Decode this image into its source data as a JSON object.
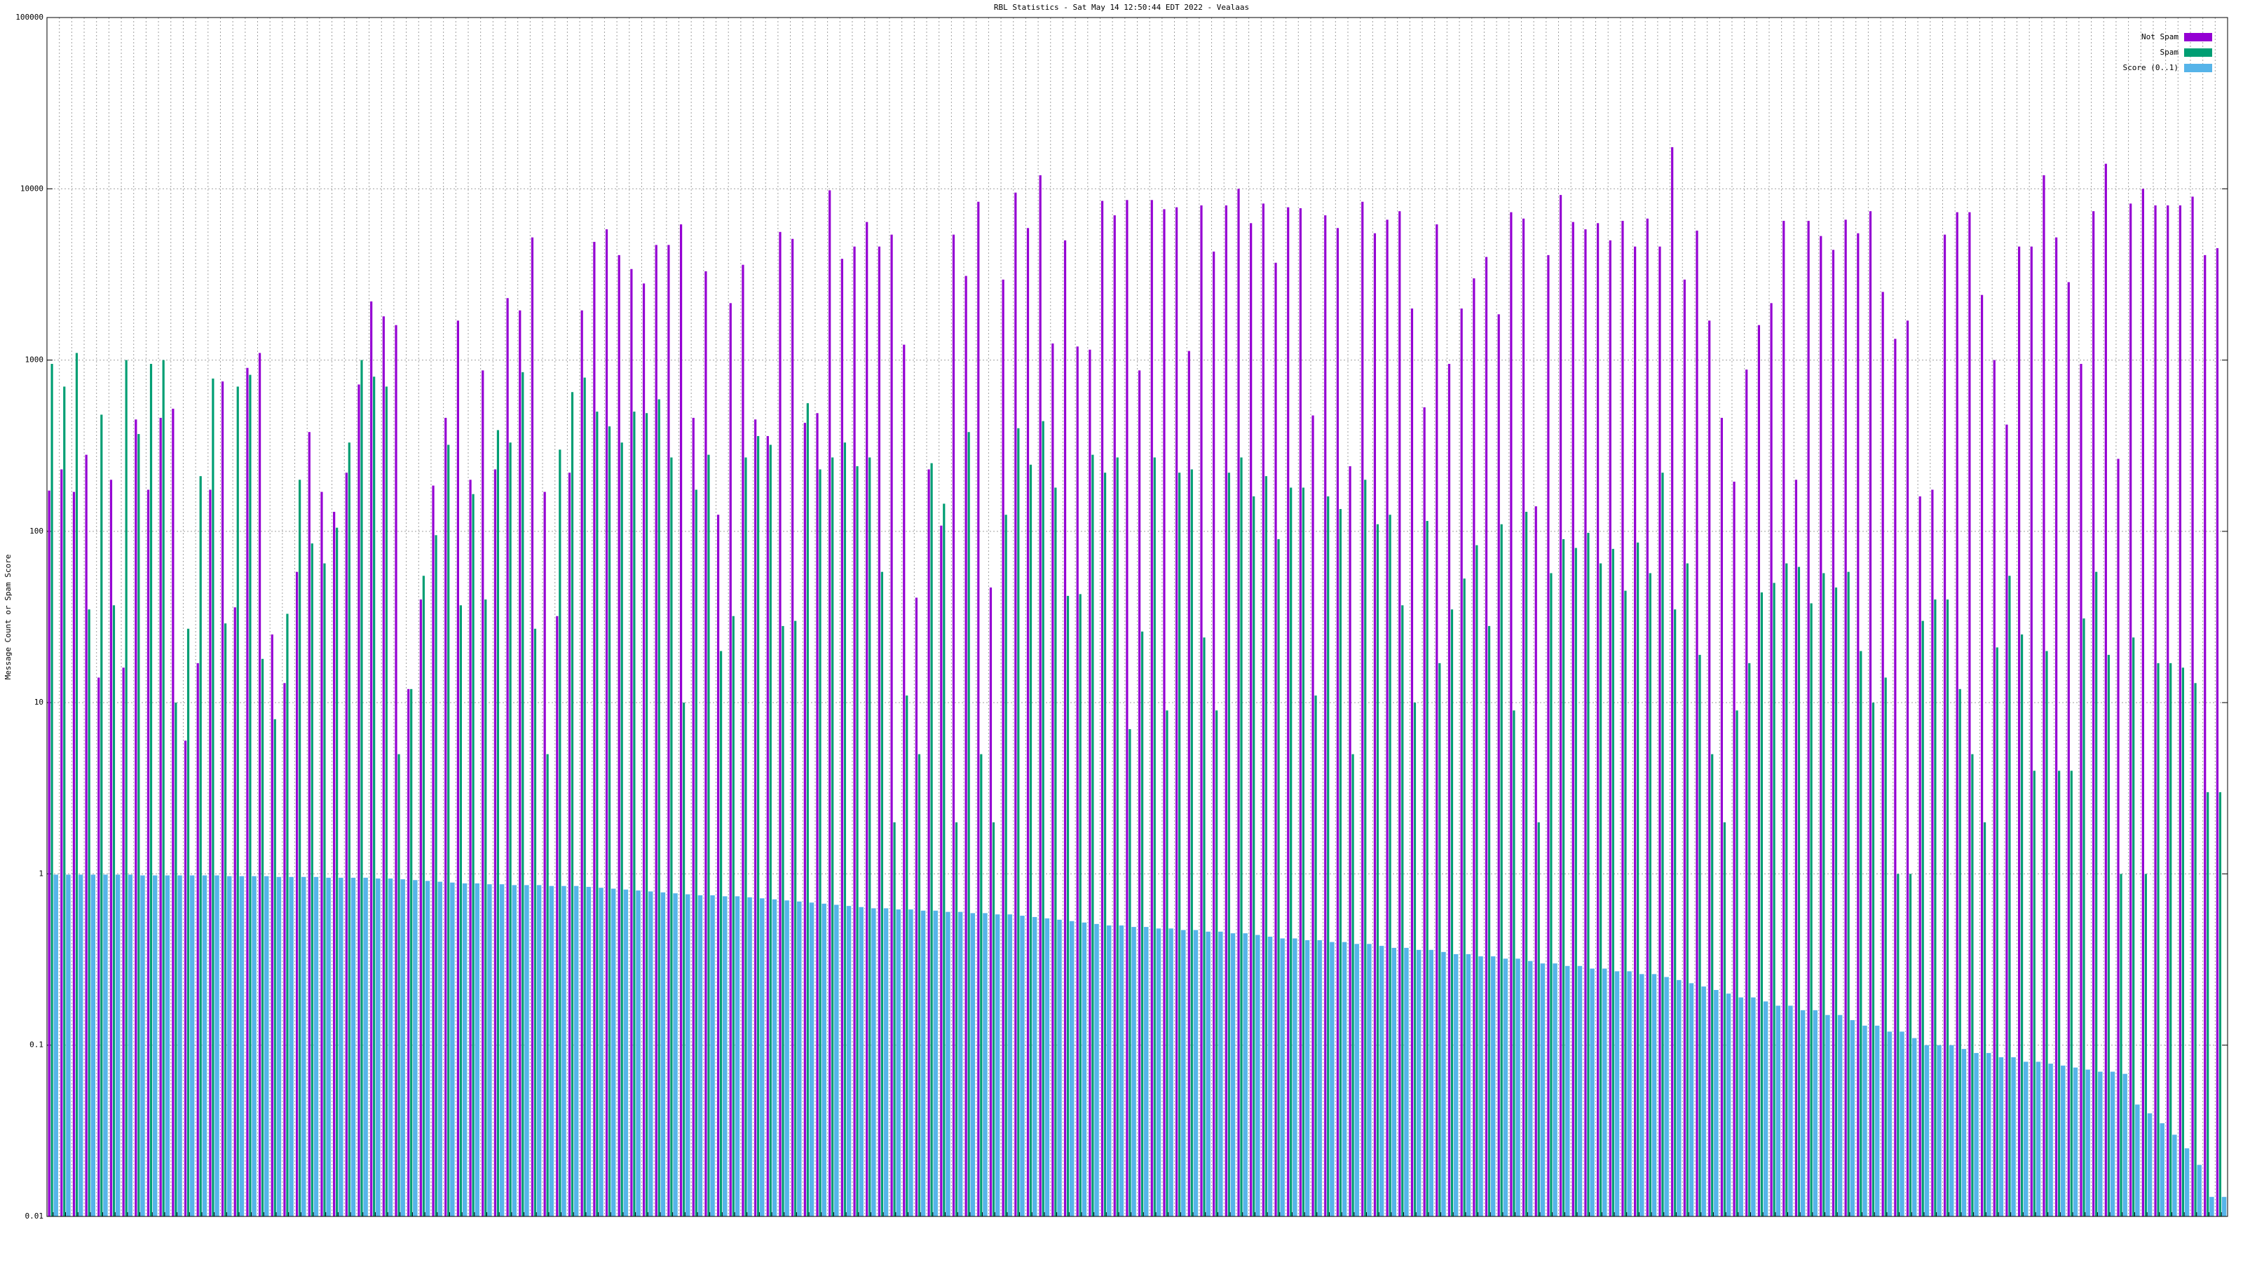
{
  "chart_data": {
    "type": "bar",
    "title": "RBL Statistics - Sat May 14 12:50:44 EDT 2022 - Vealaas",
    "y_label": "Message Count or Spam Score",
    "log_scale": true,
    "grid": true,
    "legend_position": "top-right",
    "ylim": [
      0.01,
      100000
    ],
    "yticks": [
      0.01,
      0.1,
      1,
      10,
      100,
      1000,
      10000,
      100000
    ],
    "categories": [
      null,
      null,
      null,
      null,
      null,
      null,
      null,
      null,
      null,
      null,
      null,
      null,
      null,
      null,
      null,
      null,
      null,
      null,
      null,
      null,
      null,
      null,
      null,
      null,
      null,
      null,
      null,
      null,
      null,
      null,
      null,
      null,
      null,
      null,
      null,
      null,
      null,
      null,
      null,
      null,
      null,
      null,
      null,
      null,
      null,
      null,
      null,
      null,
      null,
      null,
      null,
      null,
      null,
      null,
      null,
      null,
      null,
      null,
      null,
      null,
      null,
      null,
      null,
      null,
      null,
      null,
      null,
      null,
      null,
      null,
      null,
      null,
      null,
      null,
      null,
      null,
      null,
      null,
      null,
      null,
      null,
      null,
      null,
      null,
      null,
      null,
      null,
      null,
      null,
      null,
      null,
      null,
      null,
      null,
      null,
      null,
      null,
      null,
      null,
      null,
      null,
      null,
      null,
      null,
      null,
      null,
      null,
      null,
      null,
      null,
      null,
      null,
      null,
      null,
      null,
      null,
      null,
      null,
      null,
      null,
      null,
      null,
      null,
      null,
      null,
      null,
      null,
      null,
      null,
      null,
      null,
      null,
      null,
      null,
      null,
      null,
      null,
      null,
      null,
      null,
      null,
      null,
      null,
      null,
      null,
      null,
      null,
      null,
      null,
      null,
      null,
      null,
      null,
      null,
      null,
      null,
      null,
      null,
      null,
      null,
      null,
      null,
      null,
      null,
      null,
      null,
      null,
      null,
      null,
      null,
      null,
      null,
      null,
      null,
      null,
      null
    ],
    "series": [
      {
        "name": "Not Spam",
        "color": "#9400d3",
        "values": [
          173,
          230,
          170,
          280,
          14,
          200,
          16,
          450,
          175,
          460,
          520,
          6,
          17,
          175,
          750,
          36,
          900,
          1100,
          25,
          13,
          58,
          380,
          170,
          130,
          220,
          720,
          2200,
          1800,
          1600,
          12,
          40,
          185,
          460,
          1700,
          200,
          870,
          230,
          2300,
          1950,
          5200,
          170,
          32,
          220,
          1950,
          4900,
          5800,
          4100,
          3400,
          2800,
          4700,
          4700,
          6200,
          460,
          3300,
          125,
          2150,
          3600,
          450,
          360,
          5600,
          5100,
          430,
          490,
          9800,
          3900,
          4600,
          6400,
          4600,
          5400,
          1230,
          41,
          230,
          108,
          5400,
          3100,
          8400,
          47,
          2950,
          9500,
          5900,
          12000,
          1250,
          5000,
          1200,
          1150,
          8500,
          7000,
          8600,
          870,
          8600,
          7600,
          7800,
          1130,
          8000,
          4300,
          8000,
          10000,
          6300,
          8200,
          3700,
          7800,
          7700,
          475,
          7000,
          5900,
          240,
          8400,
          5500,
          6600,
          7400,
          2000,
          530,
          6200,
          950,
          2000,
          3000,
          4000,
          1850,
          7300,
          6700,
          140,
          4100,
          9200,
          6400,
          5800,
          6300,
          5000,
          6500,
          4600,
          6700,
          4600,
          17500,
          2950,
          5700,
          1700,
          460,
          195,
          880,
          1600,
          2150,
          6500,
          200,
          6500,
          5300,
          4400,
          6600,
          5500,
          7400,
          2500,
          1330,
          1700,
          160,
          175,
          5400,
          7300,
          7300,
          2400,
          1000,
          420,
          4600,
          4600,
          12000,
          5200,
          2850,
          950,
          7400,
          14000,
          265,
          8200,
          10000,
          8000,
          8000,
          8000,
          9000,
          4100,
          4500
        ]
      },
      {
        "name": "Spam",
        "color": "#009e73",
        "values": [
          950,
          700,
          1100,
          35,
          480,
          37,
          1000,
          370,
          950,
          1000,
          10,
          27,
          210,
          780,
          29,
          700,
          820,
          18,
          8,
          33,
          200,
          85,
          65,
          105,
          330,
          1000,
          800,
          700,
          5,
          12,
          55,
          95,
          320,
          37,
          165,
          40,
          390,
          330,
          850,
          27,
          5,
          300,
          650,
          790,
          500,
          410,
          330,
          500,
          490,
          590,
          270,
          10,
          175,
          280,
          20,
          32,
          270,
          360,
          320,
          28,
          30,
          560,
          230,
          270,
          330,
          240,
          270,
          58,
          2,
          11,
          5,
          250,
          145,
          2,
          380,
          5,
          2,
          125,
          400,
          245,
          440,
          180,
          42,
          43,
          280,
          220,
          270,
          7,
          26,
          270,
          9,
          220,
          230,
          24,
          9,
          220,
          270,
          160,
          210,
          90,
          180,
          180,
          11,
          160,
          135,
          5,
          200,
          110,
          125,
          37,
          10,
          115,
          17,
          35,
          53,
          83,
          28,
          110,
          9,
          130,
          2,
          57,
          90,
          80,
          98,
          65,
          79,
          45,
          86,
          57,
          220,
          35,
          65,
          19,
          5,
          2,
          9,
          17,
          44,
          50,
          65,
          62,
          38,
          57,
          47,
          58,
          20,
          10,
          14,
          1,
          1,
          30,
          40,
          40,
          12,
          5,
          2,
          21,
          55,
          25,
          4,
          20,
          4,
          4,
          31,
          58,
          19,
          1,
          24,
          1,
          17,
          17,
          16,
          13,
          3,
          3
        ]
      },
      {
        "name": "Score (0..1)",
        "color": "#56b4e9",
        "values": [
          0.99,
          0.99,
          0.99,
          0.99,
          0.99,
          0.99,
          0.99,
          0.98,
          0.98,
          0.98,
          0.98,
          0.98,
          0.98,
          0.98,
          0.97,
          0.97,
          0.97,
          0.97,
          0.96,
          0.96,
          0.96,
          0.96,
          0.95,
          0.95,
          0.95,
          0.95,
          0.94,
          0.94,
          0.93,
          0.92,
          0.91,
          0.9,
          0.89,
          0.88,
          0.88,
          0.87,
          0.87,
          0.86,
          0.86,
          0.86,
          0.85,
          0.85,
          0.85,
          0.84,
          0.83,
          0.82,
          0.81,
          0.8,
          0.79,
          0.78,
          0.77,
          0.76,
          0.75,
          0.75,
          0.74,
          0.74,
          0.73,
          0.72,
          0.71,
          0.7,
          0.69,
          0.68,
          0.67,
          0.66,
          0.65,
          0.64,
          0.63,
          0.63,
          0.62,
          0.62,
          0.61,
          0.61,
          0.6,
          0.6,
          0.59,
          0.59,
          0.58,
          0.58,
          0.57,
          0.56,
          0.55,
          0.54,
          0.53,
          0.52,
          0.51,
          0.5,
          0.5,
          0.49,
          0.49,
          0.48,
          0.48,
          0.47,
          0.47,
          0.46,
          0.46,
          0.45,
          0.45,
          0.44,
          0.43,
          0.42,
          0.42,
          0.41,
          0.41,
          0.4,
          0.4,
          0.39,
          0.39,
          0.38,
          0.37,
          0.37,
          0.36,
          0.36,
          0.35,
          0.34,
          0.34,
          0.33,
          0.33,
          0.32,
          0.32,
          0.31,
          0.3,
          0.3,
          0.29,
          0.29,
          0.28,
          0.28,
          0.27,
          0.27,
          0.26,
          0.26,
          0.25,
          0.24,
          0.23,
          0.22,
          0.21,
          0.2,
          0.19,
          0.19,
          0.18,
          0.17,
          0.17,
          0.16,
          0.16,
          0.15,
          0.15,
          0.14,
          0.13,
          0.13,
          0.12,
          0.12,
          0.11,
          0.1,
          0.1,
          0.1,
          0.095,
          0.09,
          0.09,
          0.085,
          0.085,
          0.08,
          0.08,
          0.078,
          0.076,
          0.074,
          0.072,
          0.07,
          0.07,
          0.068,
          0.045,
          0.04,
          0.035,
          0.03,
          0.025,
          0.02,
          0.013,
          0.013
        ]
      }
    ]
  }
}
